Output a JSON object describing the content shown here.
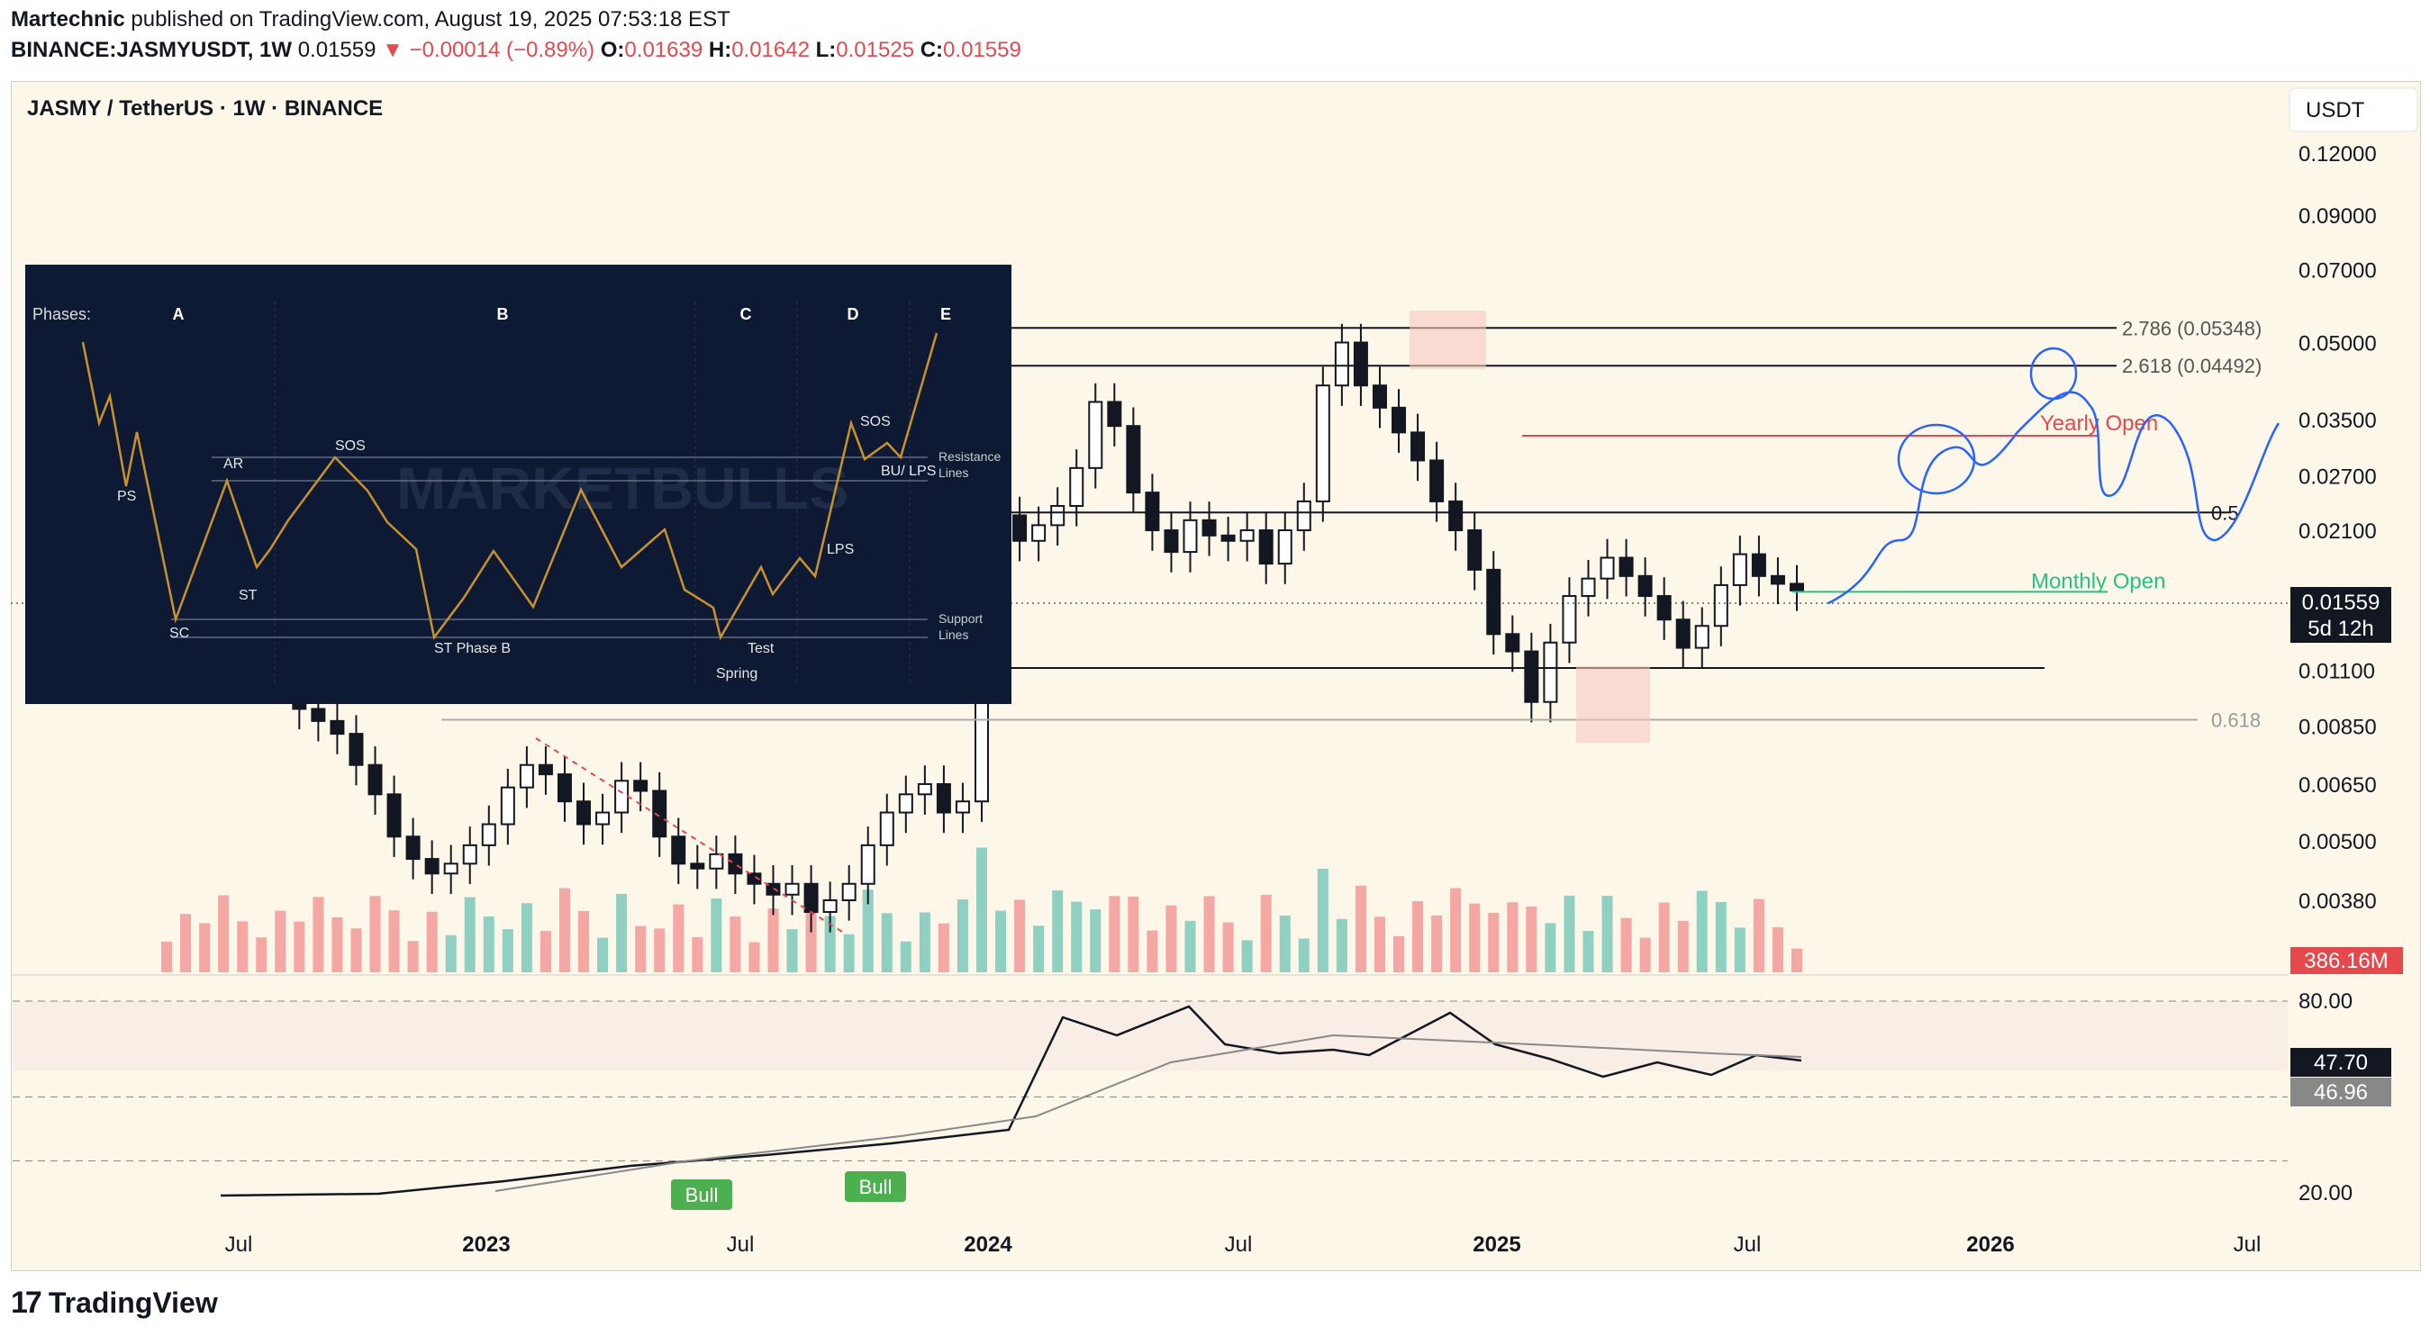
{
  "header": {
    "publisher": "Martechnic",
    "published_text": "published on TradingView.com, August 19, 2025 07:53:18 EST",
    "symbol": "BINANCE:JASMYUSDT, 1W",
    "last": "0.01559",
    "change": "−0.00014 (−0.89%)",
    "open_label": "O:",
    "open": "0.01639",
    "high_label": "H:",
    "high": "0.01642",
    "low_label": "L:",
    "low": "0.01525",
    "close_label": "C:",
    "close": "0.01559"
  },
  "chart_title": "JASMY / TetherUS · 1W · BINANCE",
  "currency_button": "USDT",
  "footer": {
    "brand": "TradingView"
  },
  "colors": {
    "background": "#fdf7ea",
    "up": "#ffffff",
    "down": "#131722",
    "vol_up": "#8fd0c2",
    "vol_down": "#f4a7a3",
    "projection": "#2962ff",
    "yearly_open": "#e5484d",
    "monthly_open": "#26c281",
    "bull_badge": "#4caf50"
  },
  "chart_data": [
    {
      "type": "candlestick",
      "timeframe": "1W",
      "scale": "log",
      "ylim": [
        0.0033,
        0.13
      ],
      "y_ticks": [
        "0.12000",
        "0.09000",
        "0.07000",
        "0.05000",
        "0.03500",
        "0.02700",
        "0.02100",
        "0.01100",
        "0.00850",
        "0.00650",
        "0.00500",
        "0.00380"
      ],
      "x_ticks": [
        "Jul",
        "2023",
        "Jul",
        "2024",
        "Jul",
        "2025",
        "Jul",
        "2026",
        "Jul"
      ],
      "last_price": "0.01559",
      "countdown": "5d 12h",
      "volume": "386.16M",
      "levels": [
        {
          "label": "2.786 (0.05348)",
          "value": 0.05348
        },
        {
          "label": "2.618 (0.04492)",
          "value": 0.04492
        },
        {
          "label": "Yearly Open",
          "value": 0.0325
        },
        {
          "label": "0.5",
          "value": 0.0228
        },
        {
          "label": "Monthly Open",
          "value": 0.0158
        },
        {
          "label": "0.618",
          "value": 0.00875
        }
      ],
      "close_series": [
        0.018,
        0.017,
        0.0145,
        0.013,
        0.0122,
        0.011,
        0.0105,
        0.0092,
        0.0087,
        0.0082,
        0.0071,
        0.0062,
        0.0051,
        0.0046,
        0.0043,
        0.0045,
        0.0049,
        0.0054,
        0.0064,
        0.0071,
        0.0068,
        0.006,
        0.0054,
        0.0057,
        0.0066,
        0.0063,
        0.0051,
        0.0045,
        0.0044,
        0.0047,
        0.0043,
        0.0041,
        0.0039,
        0.0041,
        0.0036,
        0.0038,
        0.0041,
        0.0049,
        0.0057,
        0.0062,
        0.0065,
        0.0057,
        0.006,
        0.016,
        0.0225,
        0.02,
        0.0215,
        0.0235,
        0.028,
        0.038,
        0.034,
        0.025,
        0.021,
        0.019,
        0.022,
        0.0205,
        0.02,
        0.021,
        0.018,
        0.021,
        0.024,
        0.041,
        0.05,
        0.041,
        0.037,
        0.033,
        0.029,
        0.024,
        0.021,
        0.0175,
        0.013,
        0.012,
        0.0095,
        0.0125,
        0.0155,
        0.0168,
        0.0185,
        0.017,
        0.0155,
        0.0139,
        0.0122,
        0.0135,
        0.0163,
        0.0188,
        0.017,
        0.0164,
        0.0159
      ]
    },
    {
      "type": "line",
      "name": "RSI",
      "ylim": [
        0,
        100
      ],
      "y_ticks": [
        "80.00",
        "20.00"
      ],
      "rsi": "47.70",
      "rsi_ma": "46.96",
      "badges": [
        "Bull",
        "Bull"
      ]
    },
    {
      "type": "line",
      "name": "Wyckoff inset",
      "phases_label": "Phases:",
      "phases": [
        "A",
        "B",
        "C",
        "D",
        "E"
      ],
      "labels": [
        "PS",
        "SC",
        "AR",
        "ST",
        "SOS",
        "ST Phase B",
        "Spring",
        "Test",
        "LPS",
        "SOS",
        "BU/ LPS"
      ],
      "resistance_label": "Resistance\nLines",
      "support_label": "Support\nLines",
      "watermark": "MARKETBULLS"
    }
  ]
}
